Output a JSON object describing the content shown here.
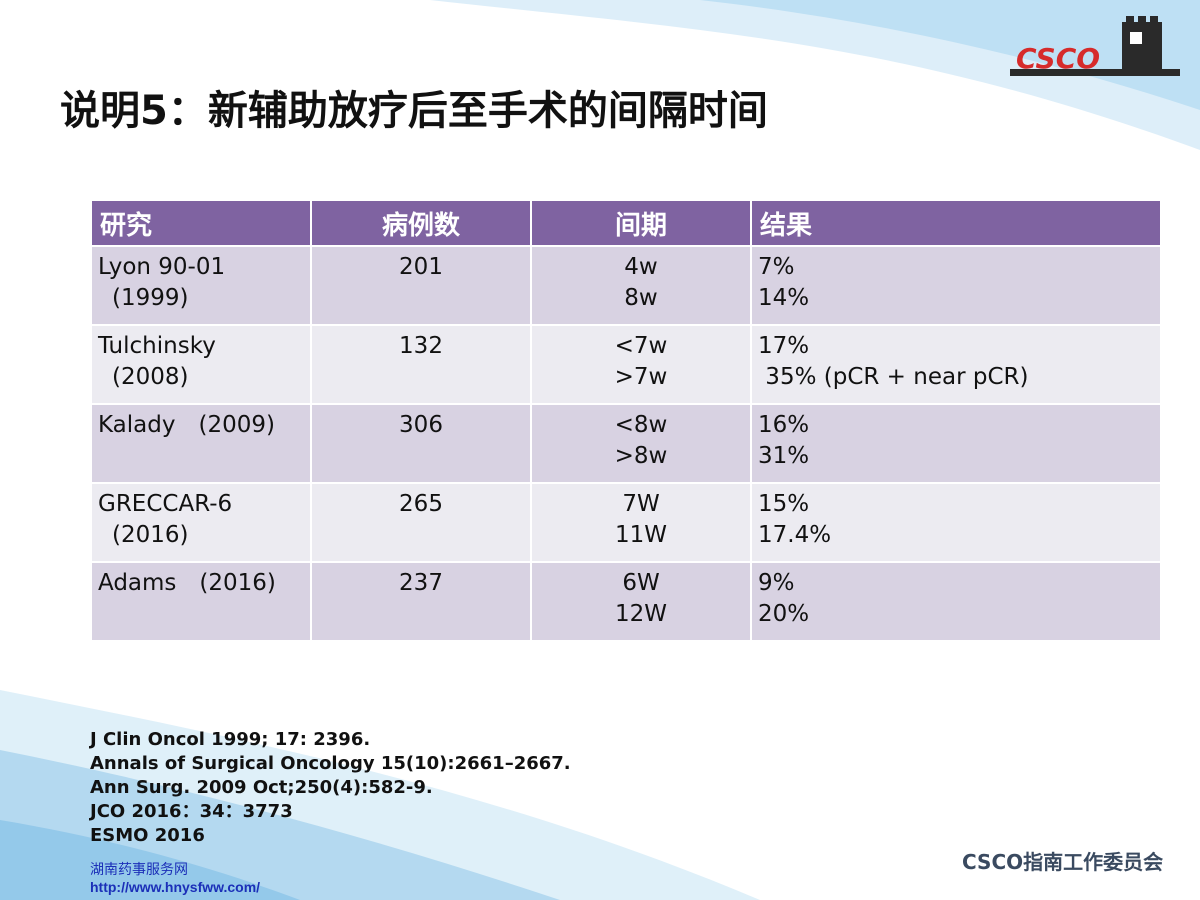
{
  "title": "说明5：新辅助放疗后至手术的间隔时间",
  "logo": {
    "text": "CSCO"
  },
  "table": {
    "headers": [
      "研究",
      "病例数",
      "间期",
      "结果"
    ],
    "rows": [
      {
        "study": [
          "Lyon 90-01",
          "(1999)"
        ],
        "cases": "201",
        "interval": [
          "4w",
          "8w"
        ],
        "result": [
          "7%",
          "14%"
        ]
      },
      {
        "study": [
          "Tulchinsky",
          "(2008)"
        ],
        "cases": "132",
        "interval": [
          "<7w",
          ">7w"
        ],
        "result": [
          "17%",
          " 35% (pCR + near pCR)"
        ]
      },
      {
        "study": [
          "Kalady　(2009)",
          ""
        ],
        "cases": "306",
        "interval": [
          "<8w",
          ">8w"
        ],
        "result": [
          "16%",
          "31%"
        ]
      },
      {
        "study": [
          "GRECCAR-6",
          "(2016)"
        ],
        "cases": "265",
        "interval": [
          "7W",
          "11W"
        ],
        "result": [
          "15%",
          "17.4%"
        ]
      },
      {
        "study": [
          "Adams　(2016)",
          ""
        ],
        "cases": "237",
        "interval": [
          "6W",
          "12W"
        ],
        "result": [
          "9%",
          "20%"
        ]
      }
    ]
  },
  "references": [
    "J Clin Oncol 1999; 17: 2396.",
    "Annals of Surgical Oncology 15(10):2661–2667.",
    "Ann Surg. 2009 Oct;250(4):582-9.",
    "JCO 2016：34：3773",
    "ESMO 2016"
  ],
  "watermark": {
    "name": "湖南药事服务网",
    "url": "http://www.hnysfww.com/"
  },
  "footer_org": "CSCO指南工作委员会",
  "colors": {
    "header_bg": "#7f63a1",
    "row_odd": "#d8d2e2",
    "row_even": "#ecebf1",
    "logo_red": "#d62b2b",
    "swoosh_blue": "#9fcdea"
  }
}
